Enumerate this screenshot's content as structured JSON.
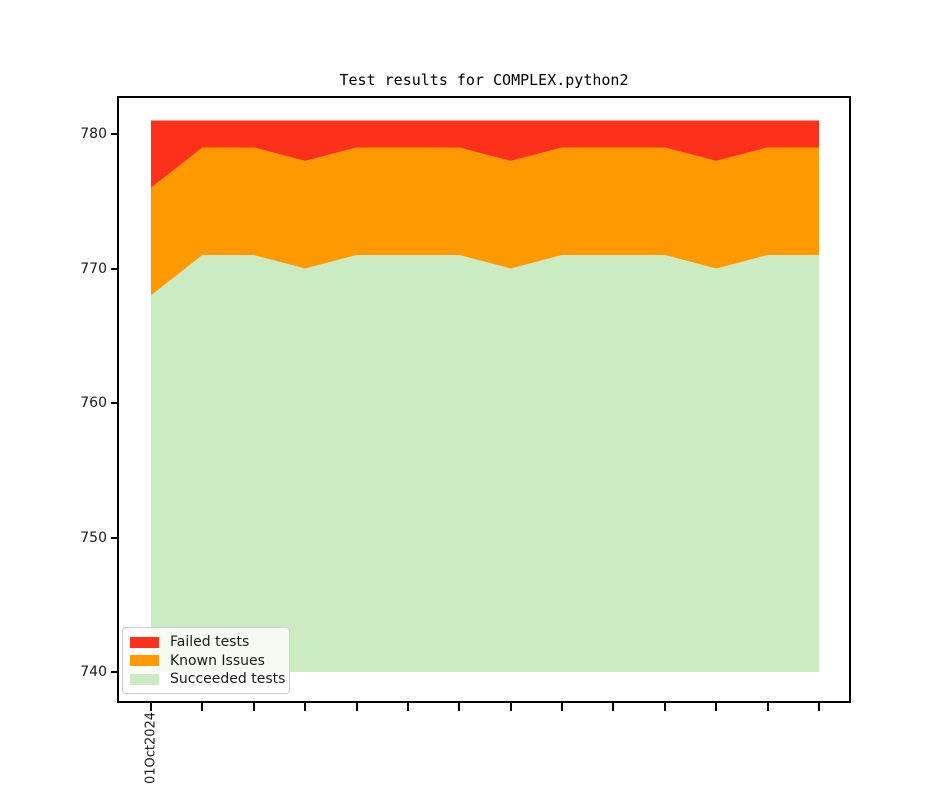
{
  "title": "Test results for COMPLEX.python2",
  "colors": {
    "failed": "#fd311b",
    "known": "#ff9900",
    "succeeded": "#cbecc2",
    "axis": "#000000"
  },
  "y_axis": {
    "ticks": [
      740,
      750,
      760,
      770,
      780
    ]
  },
  "x_axis": {
    "first_tick_label": "01Oct2024",
    "tick_count": 14
  },
  "legend": {
    "items": [
      {
        "label": "Failed tests",
        "color_key": "failed"
      },
      {
        "label": "Known Issues",
        "color_key": "known"
      },
      {
        "label": "Succeeded tests",
        "color_key": "succeeded"
      }
    ]
  },
  "chart_data": {
    "type": "area",
    "stacked": true,
    "title": "Test results for COMPLEX.python2",
    "xlabel": "",
    "ylabel": "",
    "x_tick_labels": [
      "01Oct2024",
      "",
      "",
      "",
      "",
      "",
      "",
      "",
      "",
      "",
      "",
      "",
      "",
      ""
    ],
    "baseline": 740,
    "ylim": [
      737.8,
      782.8
    ],
    "grid": false,
    "legend_position": "lower left",
    "series": [
      {
        "name": "Succeeded tests",
        "color": "#cbecc2",
        "values": [
          768,
          771,
          771,
          770,
          771,
          771,
          771,
          770,
          771,
          771,
          771,
          770,
          771,
          771
        ]
      },
      {
        "name": "Known Issues",
        "color": "#ff9900",
        "values": [
          8,
          8,
          8,
          8,
          8,
          8,
          8,
          8,
          8,
          8,
          8,
          8,
          8,
          8
        ]
      },
      {
        "name": "Failed tests",
        "color": "#fd311b",
        "values": [
          5,
          2,
          2,
          3,
          2,
          2,
          2,
          3,
          2,
          2,
          2,
          3,
          2,
          2
        ]
      }
    ],
    "stack_totals": [
      781,
      781,
      781,
      781,
      781,
      781,
      781,
      781,
      781,
      781,
      781,
      781,
      781,
      781
    ]
  }
}
